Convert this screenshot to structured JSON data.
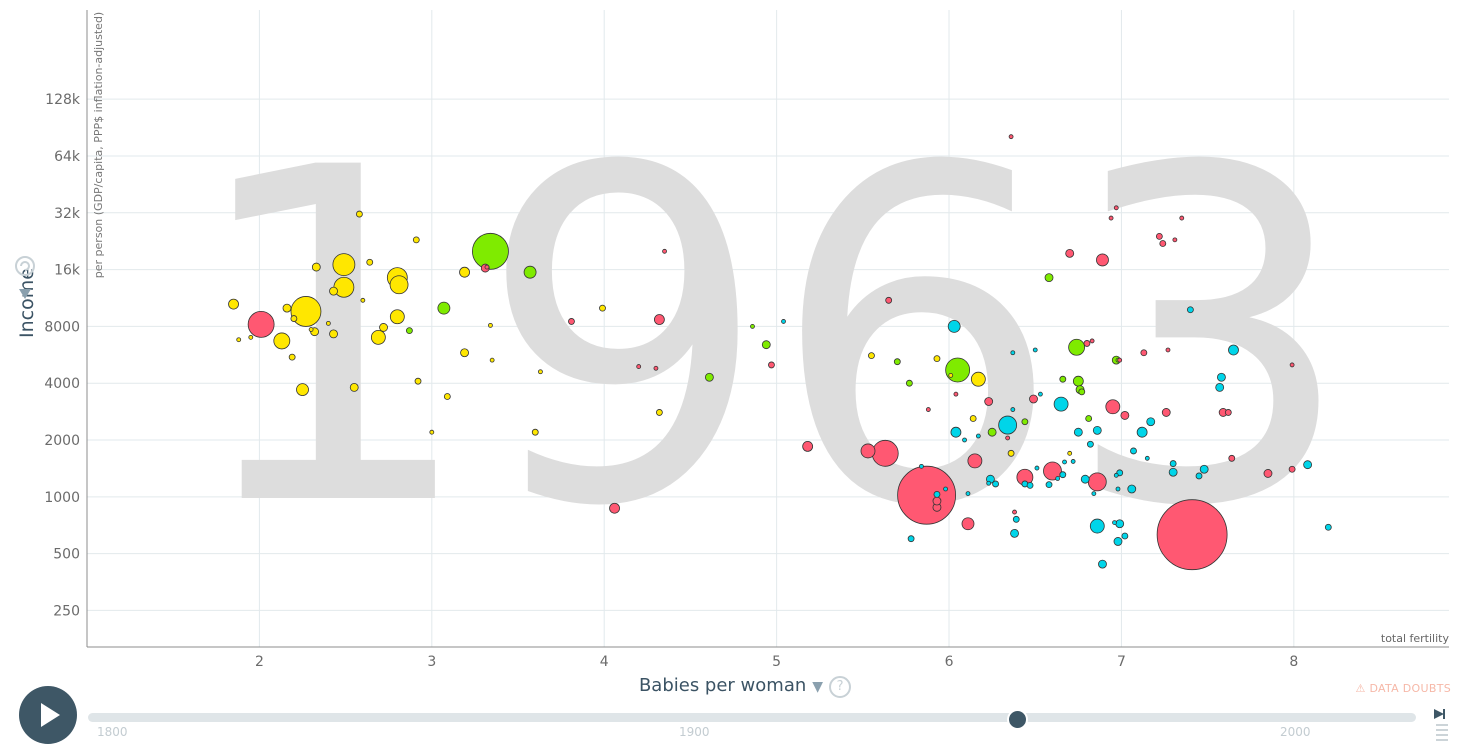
{
  "chart_data": {
    "type": "scatter",
    "year_label": "1963",
    "xlabel": "Babies per woman",
    "x_unit": "total fertility",
    "ylabel": "Income",
    "y_unit": "per person (GDP/capita, PPP$ inflation-adjusted)",
    "x_scale": "linear",
    "y_scale": "log",
    "xlim": [
      1,
      8.9
    ],
    "ylim": [
      160,
      380000
    ],
    "x_ticks": [
      2,
      3,
      4,
      5,
      6,
      7,
      8
    ],
    "y_ticks": [
      250,
      500,
      1000,
      2000,
      4000,
      8000,
      16000,
      32000,
      64000,
      128000
    ],
    "y_tick_labels": [
      "250",
      "500",
      "1000",
      "2000",
      "4000",
      "8000",
      "16k",
      "32k",
      "64k",
      "128k"
    ],
    "grid": true,
    "region_colors": {
      "africa": "#00d5e9",
      "americas": "#7feb00",
      "asia": "#ff5872",
      "europe": "#ffe700"
    },
    "points": [
      {
        "x": 7.41,
        "y": 630,
        "size": 35,
        "region": "asia"
      },
      {
        "x": 5.87,
        "y": 1020,
        "size": 29,
        "region": "asia"
      },
      {
        "x": 3.34,
        "y": 20000,
        "size": 18,
        "region": "americas"
      },
      {
        "x": 2.27,
        "y": 9600,
        "size": 15,
        "region": "europe"
      },
      {
        "x": 5.63,
        "y": 1700,
        "size": 13,
        "region": "asia"
      },
      {
        "x": 2.01,
        "y": 8200,
        "size": 13,
        "region": "asia"
      },
      {
        "x": 6.05,
        "y": 4700,
        "size": 12,
        "region": "americas"
      },
      {
        "x": 2.49,
        "y": 17000,
        "size": 11,
        "region": "europe"
      },
      {
        "x": 2.49,
        "y": 12900,
        "size": 10,
        "region": "europe"
      },
      {
        "x": 2.8,
        "y": 14500,
        "size": 10,
        "region": "europe"
      },
      {
        "x": 2.81,
        "y": 13300,
        "size": 9,
        "region": "europe"
      },
      {
        "x": 6.34,
        "y": 2400,
        "size": 9,
        "region": "africa"
      },
      {
        "x": 6.86,
        "y": 1200,
        "size": 9,
        "region": "asia"
      },
      {
        "x": 6.6,
        "y": 1370,
        "size": 9,
        "region": "asia"
      },
      {
        "x": 6.44,
        "y": 1270,
        "size": 8,
        "region": "asia"
      },
      {
        "x": 2.13,
        "y": 6700,
        "size": 8,
        "region": "europe"
      },
      {
        "x": 2.69,
        "y": 7000,
        "size": 7,
        "region": "europe"
      },
      {
        "x": 2.8,
        "y": 9000,
        "size": 7,
        "region": "europe"
      },
      {
        "x": 5.53,
        "y": 1750,
        "size": 7,
        "region": "asia"
      },
      {
        "x": 6.15,
        "y": 1550,
        "size": 7,
        "region": "asia"
      },
      {
        "x": 6.74,
        "y": 6200,
        "size": 8,
        "region": "americas"
      },
      {
        "x": 6.17,
        "y": 4200,
        "size": 7,
        "region": "europe"
      },
      {
        "x": 6.65,
        "y": 3100,
        "size": 7,
        "region": "africa"
      },
      {
        "x": 6.95,
        "y": 3000,
        "size": 7,
        "region": "asia"
      },
      {
        "x": 6.89,
        "y": 18000,
        "size": 6,
        "region": "asia"
      },
      {
        "x": 6.86,
        "y": 700,
        "size": 7,
        "region": "africa"
      },
      {
        "x": 6.11,
        "y": 720,
        "size": 6,
        "region": "asia"
      },
      {
        "x": 6.03,
        "y": 8000,
        "size": 6,
        "region": "africa"
      },
      {
        "x": 3.57,
        "y": 15500,
        "size": 6,
        "region": "americas"
      },
      {
        "x": 3.07,
        "y": 10000,
        "size": 6,
        "region": "americas"
      },
      {
        "x": 7.65,
        "y": 6000,
        "size": 5,
        "region": "africa"
      },
      {
        "x": 2.25,
        "y": 3700,
        "size": 6,
        "region": "europe"
      },
      {
        "x": 6.75,
        "y": 4100,
        "size": 5,
        "region": "americas"
      },
      {
        "x": 4.32,
        "y": 8700,
        "size": 5,
        "region": "asia"
      },
      {
        "x": 3.19,
        "y": 15500,
        "size": 5,
        "region": "europe"
      },
      {
        "x": 1.85,
        "y": 10500,
        "size": 5,
        "region": "europe"
      },
      {
        "x": 2.55,
        "y": 3800,
        "size": 4,
        "region": "europe"
      },
      {
        "x": 3.19,
        "y": 5800,
        "size": 4,
        "region": "europe"
      },
      {
        "x": 4.06,
        "y": 870,
        "size": 5,
        "region": "asia"
      },
      {
        "x": 5.18,
        "y": 1850,
        "size": 5,
        "region": "asia"
      },
      {
        "x": 6.04,
        "y": 2200,
        "size": 5,
        "region": "africa"
      },
      {
        "x": 7.12,
        "y": 2200,
        "size": 5,
        "region": "africa"
      },
      {
        "x": 8.08,
        "y": 1480,
        "size": 4,
        "region": "africa"
      },
      {
        "x": 7.85,
        "y": 1330,
        "size": 4,
        "region": "asia"
      },
      {
        "x": 6.7,
        "y": 19500,
        "size": 4,
        "region": "asia"
      },
      {
        "x": 6.58,
        "y": 14500,
        "size": 4,
        "region": "americas"
      },
      {
        "x": 4.61,
        "y": 4300,
        "size": 4,
        "region": "americas"
      },
      {
        "x": 4.94,
        "y": 6400,
        "size": 4,
        "region": "americas"
      },
      {
        "x": 6.97,
        "y": 5300,
        "size": 4,
        "region": "americas"
      },
      {
        "x": 7.59,
        "y": 2800,
        "size": 4,
        "region": "asia"
      },
      {
        "x": 7.02,
        "y": 2700,
        "size": 4,
        "region": "asia"
      },
      {
        "x": 6.23,
        "y": 3200,
        "size": 4,
        "region": "asia"
      },
      {
        "x": 6.49,
        "y": 3300,
        "size": 4,
        "region": "asia"
      },
      {
        "x": 6.76,
        "y": 3700,
        "size": 4,
        "region": "americas"
      },
      {
        "x": 6.86,
        "y": 2250,
        "size": 4,
        "region": "africa"
      },
      {
        "x": 6.75,
        "y": 2200,
        "size": 4,
        "region": "africa"
      },
      {
        "x": 7.26,
        "y": 2800,
        "size": 4,
        "region": "asia"
      },
      {
        "x": 7.57,
        "y": 3800,
        "size": 4,
        "region": "africa"
      },
      {
        "x": 7.58,
        "y": 4300,
        "size": 4,
        "region": "africa"
      },
      {
        "x": 7.17,
        "y": 2500,
        "size": 4,
        "region": "africa"
      },
      {
        "x": 7.48,
        "y": 1400,
        "size": 4,
        "region": "africa"
      },
      {
        "x": 7.3,
        "y": 1350,
        "size": 4,
        "region": "africa"
      },
      {
        "x": 7.06,
        "y": 1100,
        "size": 4,
        "region": "africa"
      },
      {
        "x": 6.99,
        "y": 720,
        "size": 4,
        "region": "africa"
      },
      {
        "x": 6.98,
        "y": 580,
        "size": 4,
        "region": "africa"
      },
      {
        "x": 6.89,
        "y": 440,
        "size": 4,
        "region": "africa"
      },
      {
        "x": 6.79,
        "y": 1240,
        "size": 4,
        "region": "africa"
      },
      {
        "x": 6.38,
        "y": 640,
        "size": 4,
        "region": "africa"
      },
      {
        "x": 6.24,
        "y": 1240,
        "size": 4,
        "region": "africa"
      },
      {
        "x": 5.93,
        "y": 880,
        "size": 4,
        "region": "asia"
      },
      {
        "x": 6.25,
        "y": 2200,
        "size": 4,
        "region": "americas"
      },
      {
        "x": 7.24,
        "y": 22000,
        "size": 3,
        "region": "asia"
      },
      {
        "x": 7.4,
        "y": 9800,
        "size": 3,
        "region": "africa"
      },
      {
        "x": 2.72,
        "y": 7900,
        "size": 4,
        "region": "europe"
      },
      {
        "x": 2.32,
        "y": 7500,
        "size": 4,
        "region": "europe"
      },
      {
        "x": 2.43,
        "y": 7300,
        "size": 4,
        "region": "europe"
      },
      {
        "x": 2.16,
        "y": 10000,
        "size": 4,
        "region": "europe"
      },
      {
        "x": 2.43,
        "y": 12300,
        "size": 4,
        "region": "europe"
      },
      {
        "x": 2.33,
        "y": 16500,
        "size": 4,
        "region": "europe"
      },
      {
        "x": 2.64,
        "y": 17500,
        "size": 3,
        "region": "europe"
      },
      {
        "x": 2.58,
        "y": 31500,
        "size": 3,
        "region": "europe"
      },
      {
        "x": 2.91,
        "y": 23000,
        "size": 3,
        "region": "europe"
      },
      {
        "x": 2.2,
        "y": 8800,
        "size": 3,
        "region": "europe"
      },
      {
        "x": 2.19,
        "y": 5500,
        "size": 3,
        "region": "europe"
      },
      {
        "x": 3.99,
        "y": 10000,
        "size": 3,
        "region": "europe"
      },
      {
        "x": 2.92,
        "y": 4100,
        "size": 3,
        "region": "europe"
      },
      {
        "x": 3.09,
        "y": 3400,
        "size": 3,
        "region": "europe"
      },
      {
        "x": 3.6,
        "y": 2200,
        "size": 3,
        "region": "europe"
      },
      {
        "x": 4.32,
        "y": 2800,
        "size": 3,
        "region": "europe"
      },
      {
        "x": 5.55,
        "y": 5600,
        "size": 3,
        "region": "europe"
      },
      {
        "x": 6.14,
        "y": 2600,
        "size": 3,
        "region": "europe"
      },
      {
        "x": 3.31,
        "y": 16300,
        "size": 4,
        "region": "asia"
      },
      {
        "x": 5.65,
        "y": 11000,
        "size": 3,
        "region": "asia"
      },
      {
        "x": 6.8,
        "y": 6500,
        "size": 3,
        "region": "asia"
      },
      {
        "x": 7.22,
        "y": 24000,
        "size": 3,
        "region": "asia"
      },
      {
        "x": 7.35,
        "y": 30000,
        "size": 2,
        "region": "asia"
      },
      {
        "x": 6.97,
        "y": 34000,
        "size": 2,
        "region": "asia"
      },
      {
        "x": 6.36,
        "y": 81000,
        "size": 2,
        "region": "asia"
      },
      {
        "x": 7.99,
        "y": 5000,
        "size": 2,
        "region": "asia"
      },
      {
        "x": 7.99,
        "y": 1400,
        "size": 3,
        "region": "asia"
      },
      {
        "x": 7.13,
        "y": 5800,
        "size": 3,
        "region": "asia"
      },
      {
        "x": 7.64,
        "y": 1600,
        "size": 3,
        "region": "asia"
      },
      {
        "x": 7.62,
        "y": 2800,
        "size": 3,
        "region": "asia"
      },
      {
        "x": 4.97,
        "y": 5000,
        "size": 3,
        "region": "asia"
      },
      {
        "x": 3.81,
        "y": 8500,
        "size": 3,
        "region": "asia"
      },
      {
        "x": 4.35,
        "y": 20000,
        "size": 2,
        "region": "asia"
      },
      {
        "x": 6.98,
        "y": 5300,
        "size": 2,
        "region": "americas"
      },
      {
        "x": 6.81,
        "y": 2600,
        "size": 3,
        "region": "americas"
      },
      {
        "x": 6.77,
        "y": 3600,
        "size": 3,
        "region": "americas"
      },
      {
        "x": 6.44,
        "y": 2500,
        "size": 3,
        "region": "americas"
      },
      {
        "x": 5.7,
        "y": 5200,
        "size": 3,
        "region": "americas"
      },
      {
        "x": 5.77,
        "y": 4000,
        "size": 3,
        "region": "americas"
      },
      {
        "x": 6.66,
        "y": 4200,
        "size": 3,
        "region": "americas"
      },
      {
        "x": 4.86,
        "y": 8000,
        "size": 2,
        "region": "americas"
      },
      {
        "x": 2.87,
        "y": 7600,
        "size": 3,
        "region": "americas"
      },
      {
        "x": 5.93,
        "y": 5400,
        "size": 3,
        "region": "europe"
      },
      {
        "x": 6.01,
        "y": 4400,
        "size": 2,
        "region": "europe"
      },
      {
        "x": 3.34,
        "y": 8100,
        "size": 2,
        "region": "europe"
      },
      {
        "x": 3.35,
        "y": 5300,
        "size": 2,
        "region": "europe"
      },
      {
        "x": 3.63,
        "y": 4600,
        "size": 2,
        "region": "europe"
      },
      {
        "x": 3.0,
        "y": 2200,
        "size": 2,
        "region": "europe"
      },
      {
        "x": 6.36,
        "y": 1700,
        "size": 3,
        "region": "europe"
      },
      {
        "x": 6.7,
        "y": 1700,
        "size": 2,
        "region": "europe"
      },
      {
        "x": 6.37,
        "y": 5800,
        "size": 2,
        "region": "africa"
      },
      {
        "x": 6.5,
        "y": 6000,
        "size": 2,
        "region": "africa"
      },
      {
        "x": 5.04,
        "y": 8500,
        "size": 2,
        "region": "africa"
      },
      {
        "x": 6.53,
        "y": 3500,
        "size": 2,
        "region": "africa"
      },
      {
        "x": 6.82,
        "y": 1900,
        "size": 3,
        "region": "africa"
      },
      {
        "x": 7.07,
        "y": 1750,
        "size": 3,
        "region": "africa"
      },
      {
        "x": 7.3,
        "y": 1500,
        "size": 3,
        "region": "africa"
      },
      {
        "x": 6.27,
        "y": 1170,
        "size": 3,
        "region": "africa"
      },
      {
        "x": 6.44,
        "y": 1170,
        "size": 3,
        "region": "africa"
      },
      {
        "x": 6.47,
        "y": 1150,
        "size": 3,
        "region": "africa"
      },
      {
        "x": 6.58,
        "y": 1160,
        "size": 3,
        "region": "africa"
      },
      {
        "x": 6.66,
        "y": 1310,
        "size": 3,
        "region": "africa"
      },
      {
        "x": 6.39,
        "y": 760,
        "size": 3,
        "region": "africa"
      },
      {
        "x": 7.02,
        "y": 620,
        "size": 3,
        "region": "africa"
      },
      {
        "x": 8.2,
        "y": 690,
        "size": 3,
        "region": "africa"
      },
      {
        "x": 5.78,
        "y": 600,
        "size": 3,
        "region": "africa"
      },
      {
        "x": 5.98,
        "y": 1100,
        "size": 2,
        "region": "africa"
      },
      {
        "x": 6.11,
        "y": 1040,
        "size": 2,
        "region": "africa"
      },
      {
        "x": 6.98,
        "y": 1100,
        "size": 2,
        "region": "africa"
      },
      {
        "x": 6.51,
        "y": 1420,
        "size": 2,
        "region": "africa"
      },
      {
        "x": 5.84,
        "y": 1450,
        "size": 2,
        "region": "africa"
      },
      {
        "x": 7.45,
        "y": 1290,
        "size": 3,
        "region": "africa"
      },
      {
        "x": 6.23,
        "y": 1180,
        "size": 2,
        "region": "africa"
      },
      {
        "x": 5.93,
        "y": 1030,
        "size": 3,
        "region": "africa"
      },
      {
        "x": 6.99,
        "y": 1340,
        "size": 3,
        "region": "africa"
      },
      {
        "x": 6.09,
        "y": 2000,
        "size": 2,
        "region": "africa"
      },
      {
        "x": 6.17,
        "y": 2100,
        "size": 2,
        "region": "africa"
      },
      {
        "x": 6.67,
        "y": 1530,
        "size": 2,
        "region": "africa"
      },
      {
        "x": 6.72,
        "y": 1540,
        "size": 2,
        "region": "africa"
      },
      {
        "x": 6.97,
        "y": 1300,
        "size": 2,
        "region": "africa"
      },
      {
        "x": 6.96,
        "y": 730,
        "size": 2,
        "region": "africa"
      },
      {
        "x": 6.84,
        "y": 1040,
        "size": 2,
        "region": "africa"
      },
      {
        "x": 7.15,
        "y": 1600,
        "size": 2,
        "region": "africa"
      },
      {
        "x": 6.63,
        "y": 1250,
        "size": 2,
        "region": "africa"
      },
      {
        "x": 6.37,
        "y": 2900,
        "size": 2,
        "region": "africa"
      },
      {
        "x": 6.04,
        "y": 3500,
        "size": 2,
        "region": "asia"
      },
      {
        "x": 5.88,
        "y": 2900,
        "size": 2,
        "region": "asia"
      },
      {
        "x": 6.34,
        "y": 2050,
        "size": 2,
        "region": "asia"
      },
      {
        "x": 6.99,
        "y": 5300,
        "size": 2,
        "region": "asia"
      },
      {
        "x": 6.83,
        "y": 6700,
        "size": 2,
        "region": "asia"
      },
      {
        "x": 7.27,
        "y": 6000,
        "size": 2,
        "region": "asia"
      },
      {
        "x": 6.38,
        "y": 830,
        "size": 2,
        "region": "asia"
      },
      {
        "x": 5.93,
        "y": 950,
        "size": 4,
        "region": "asia"
      },
      {
        "x": 4.2,
        "y": 4900,
        "size": 2,
        "region": "asia"
      },
      {
        "x": 4.3,
        "y": 4800,
        "size": 2,
        "region": "asia"
      },
      {
        "x": 3.32,
        "y": 16500,
        "size": 2,
        "region": "asia"
      },
      {
        "x": 7.31,
        "y": 23000,
        "size": 2,
        "region": "asia"
      },
      {
        "x": 6.94,
        "y": 30000,
        "size": 2,
        "region": "asia"
      },
      {
        "x": 1.88,
        "y": 6800,
        "size": 2,
        "region": "europe"
      },
      {
        "x": 1.95,
        "y": 7000,
        "size": 2,
        "region": "europe"
      },
      {
        "x": 2.6,
        "y": 11000,
        "size": 2,
        "region": "europe"
      },
      {
        "x": 2.3,
        "y": 7700,
        "size": 2,
        "region": "europe"
      },
      {
        "x": 2.4,
        "y": 8300,
        "size": 2,
        "region": "europe"
      }
    ]
  },
  "controls": {
    "doubts_label": "DATA DOUBTS",
    "help_glyph": "?",
    "timeline_ticks": [
      "1800",
      "1900",
      "2000"
    ],
    "timeline_value": 1963,
    "timeline_range": [
      1800,
      2018
    ]
  },
  "icons": {
    "play": "play-icon",
    "warning": "warning-icon",
    "help": "help-icon",
    "axis_menu": "triangle-down-icon",
    "zoom": "zoom-icon",
    "end": "skip-end-icon"
  }
}
